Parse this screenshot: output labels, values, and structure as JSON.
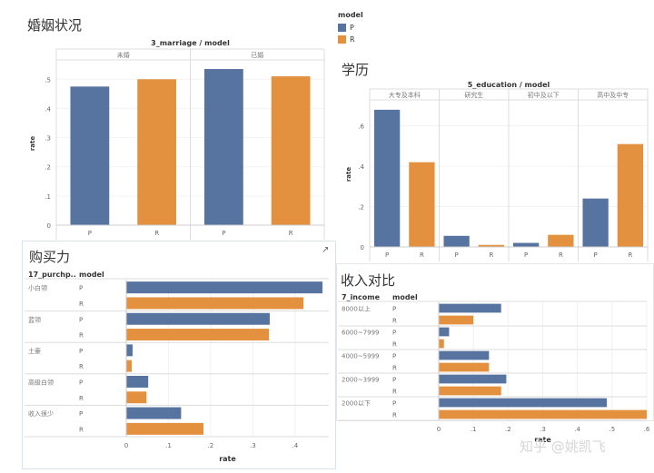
{
  "colors": {
    "P": "#56749f",
    "R": "#e3913f"
  },
  "legend": {
    "title": "model",
    "items": [
      "P",
      "R"
    ]
  },
  "watermark": "知乎 @姚凯飞",
  "chart_data": [
    {
      "id": "marriage",
      "type": "bar",
      "title": "婚姻状况",
      "subtitle": "3_marriage / model",
      "ylabel": "rate",
      "ylim": [
        0,
        0.56
      ],
      "yticks": [
        0,
        0.1,
        0.2,
        0.3,
        0.4,
        0.5
      ],
      "ytick_labels": [
        "0",
        ".1",
        ".2",
        ".3",
        ".4",
        ".5"
      ],
      "groups": [
        "未婚",
        "已婚"
      ],
      "categories": [
        "P",
        "R"
      ],
      "values": [
        [
          0.475,
          0.5
        ],
        [
          0.535,
          0.51
        ]
      ]
    },
    {
      "id": "education",
      "type": "bar",
      "title": "学历",
      "subtitle": "5_education / model",
      "ylabel": "rate",
      "ylim": [
        0,
        0.72
      ],
      "yticks": [
        0,
        0.2,
        0.4,
        0.6
      ],
      "ytick_labels": [
        "0",
        ".2",
        ".4",
        ".6"
      ],
      "groups": [
        "大专及本科",
        "研究生",
        "初中及以下",
        "高中及中专"
      ],
      "categories": [
        "P",
        "R"
      ],
      "values": [
        [
          0.68,
          0.42
        ],
        [
          0.055,
          0.01
        ],
        [
          0.02,
          0.06
        ],
        [
          0.24,
          0.51
        ]
      ]
    },
    {
      "id": "purchase",
      "type": "bar",
      "orientation": "horizontal",
      "title": "购买力",
      "row_header": "17_purchp..",
      "col_header": "model",
      "xlabel": "rate",
      "xlim": [
        0,
        0.48
      ],
      "xticks": [
        0,
        0.1,
        0.2,
        0.3,
        0.4
      ],
      "xtick_labels": [
        "0",
        ".1",
        ".2",
        ".3",
        ".4"
      ],
      "groups": [
        "小白领",
        "蓝领",
        "土豪",
        "高级白领",
        "收入很少"
      ],
      "categories": [
        "P",
        "R"
      ],
      "values": [
        [
          0.465,
          0.42
        ],
        [
          0.34,
          0.338
        ],
        [
          0.015,
          0.013
        ],
        [
          0.052,
          0.048
        ],
        [
          0.13,
          0.183
        ]
      ]
    },
    {
      "id": "income",
      "type": "bar",
      "orientation": "horizontal",
      "title": "收入对比",
      "row_header": "7_income",
      "col_header": "model",
      "xlabel": "rate",
      "xlim": [
        0,
        0.6
      ],
      "xticks": [
        0,
        0.1,
        0.2,
        0.3,
        0.4,
        0.5,
        0.6
      ],
      "xtick_labels": [
        "0",
        ".1",
        ".2",
        ".3",
        ".4",
        ".5",
        ".6"
      ],
      "groups": [
        "8000以上",
        "6000~7999",
        "4000~5999",
        "2000~3999",
        "2000以下"
      ],
      "categories": [
        "P",
        "R"
      ],
      "values": [
        [
          0.18,
          0.1
        ],
        [
          0.03,
          0.015
        ],
        [
          0.145,
          0.145
        ],
        [
          0.195,
          0.18
        ],
        [
          0.485,
          0.6
        ]
      ]
    }
  ]
}
